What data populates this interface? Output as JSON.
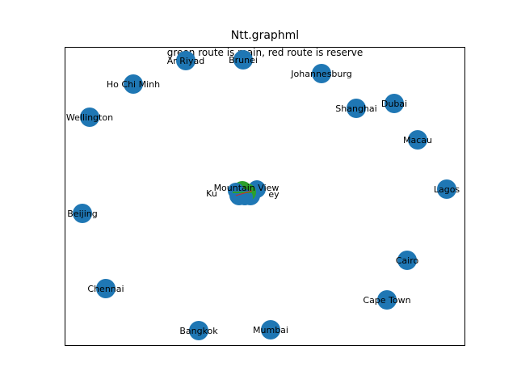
{
  "figure": {
    "title": "Ntt.graphml",
    "subtitle": "green route is main, red route is reserve"
  },
  "colors": {
    "node": "#1f77b4",
    "main_route": "#2ca02c",
    "reserve_route": "#d62728",
    "frame": "#000000",
    "background": "#ffffff"
  },
  "graph": {
    "outer_nodes": [
      {
        "id": "ar-riyad",
        "label": "Ar Riyad"
      },
      {
        "id": "brunei",
        "label": "Brunei"
      },
      {
        "id": "johannesburg",
        "label": "Johannesburg"
      },
      {
        "id": "ho-chi-minh",
        "label": "Ho Chi Minh"
      },
      {
        "id": "dubai",
        "label": "Dubai"
      },
      {
        "id": "shanghai",
        "label": "Shanghai"
      },
      {
        "id": "wellington",
        "label": "Wellington"
      },
      {
        "id": "macau",
        "label": "Macau"
      },
      {
        "id": "lagos",
        "label": "Lagos"
      },
      {
        "id": "beijing",
        "label": "Beijing"
      },
      {
        "id": "cairo",
        "label": "Cairo"
      },
      {
        "id": "chennai",
        "label": "Chennai"
      },
      {
        "id": "cape-town",
        "label": "Cape Town"
      },
      {
        "id": "bangkok",
        "label": "Bangkok"
      },
      {
        "id": "mumbai",
        "label": "Mumbai"
      }
    ],
    "cluster_labels": [
      "Mountain View",
      "Ku",
      "ey"
    ]
  }
}
